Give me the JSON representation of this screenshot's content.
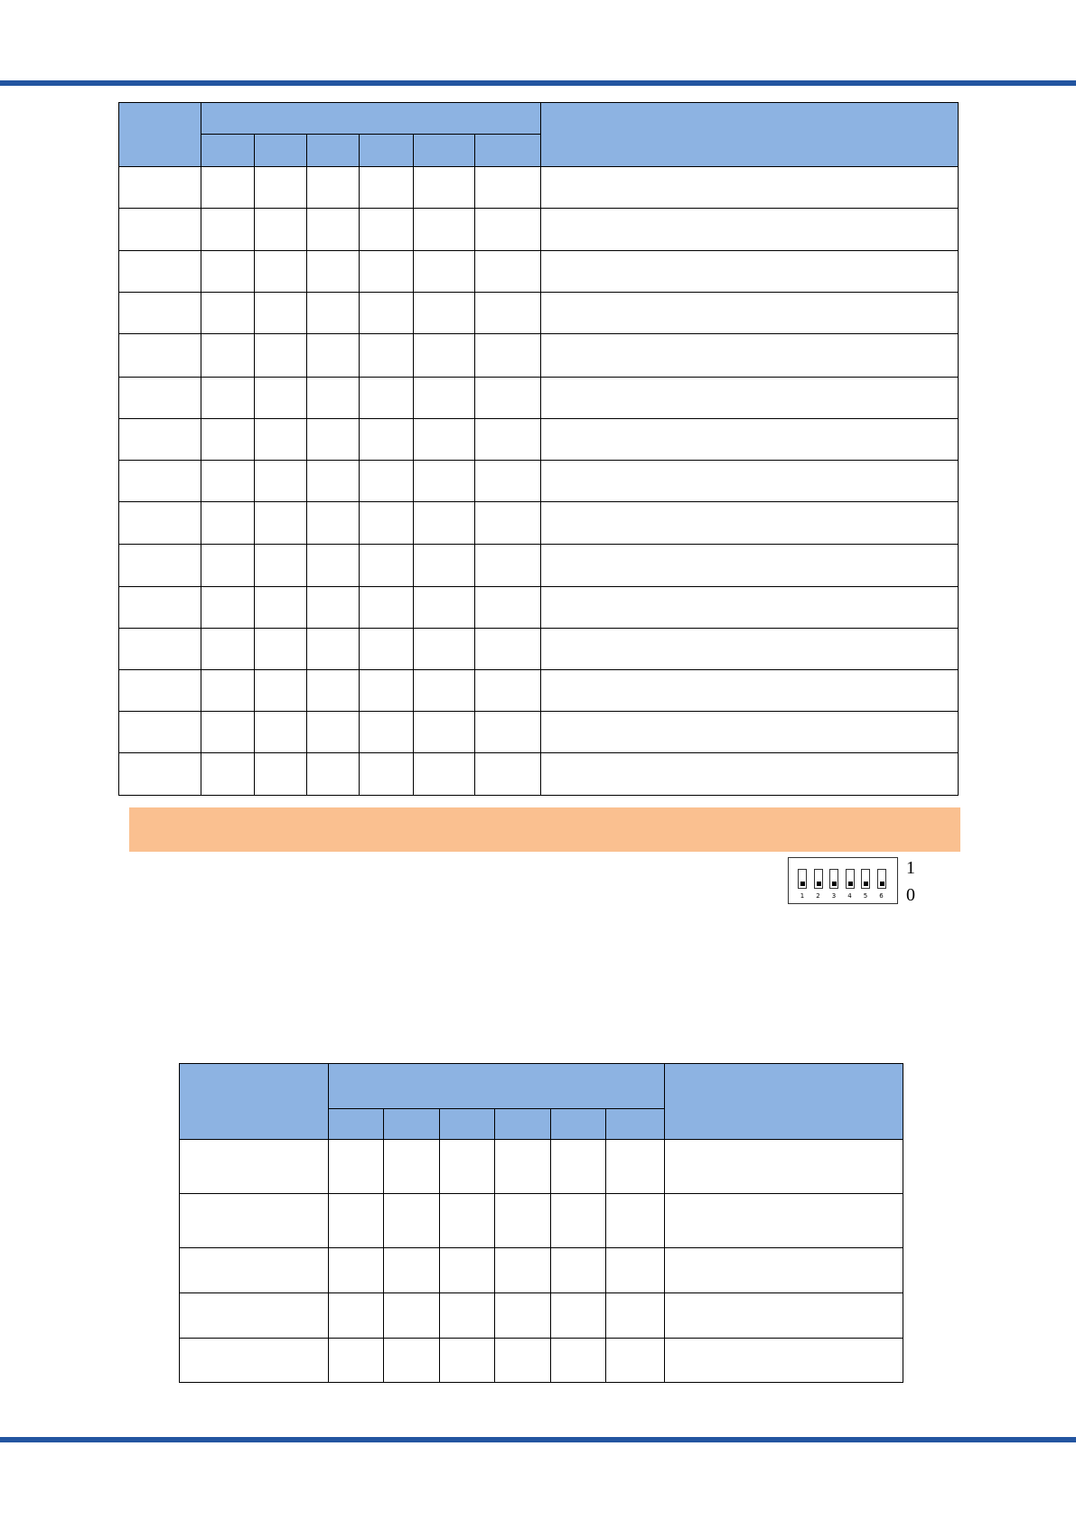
{
  "colors": {
    "rule": "#2355a0",
    "table_header": "#8db3e2",
    "highlight_bar": "#fac090"
  },
  "dip_switch": {
    "switch_numbers": [
      "1",
      "2",
      "3",
      "4",
      "5",
      "6"
    ],
    "state_on_label": "1",
    "state_off_label": "0"
  }
}
